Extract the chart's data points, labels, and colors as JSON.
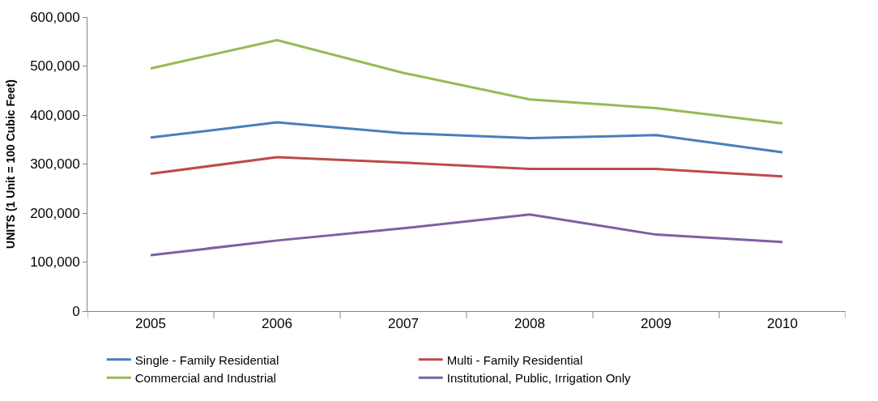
{
  "chart_data": {
    "type": "line",
    "ylabel": "UNITS (1 Unit = 100 Cubic Feet)",
    "categories": [
      "2005",
      "2006",
      "2007",
      "2008",
      "2009",
      "2010"
    ],
    "series": [
      {
        "name": "Single - Family Residential",
        "color": "#4a7ebb",
        "values": [
          354000,
          385000,
          363000,
          353000,
          359000,
          324000
        ]
      },
      {
        "name": "Multi - Family Residential",
        "color": "#be4b48",
        "values": [
          280000,
          314000,
          303000,
          290000,
          290000,
          275000
        ]
      },
      {
        "name": "Commercial and Industrial",
        "color": "#98b954",
        "values": [
          495000,
          553000,
          486000,
          432000,
          414000,
          383000
        ]
      },
      {
        "name": "Institutional, Public, Irrigation Only",
        "color": "#7d60a0",
        "values": [
          114000,
          144000,
          169000,
          197000,
          156000,
          141000
        ]
      }
    ],
    "ylim": [
      0,
      600000
    ],
    "yticks": [
      {
        "value": 0,
        "label": "0"
      },
      {
        "value": 100000,
        "label": "100,000"
      },
      {
        "value": 200000,
        "label": "200,000"
      },
      {
        "value": 300000,
        "label": "300,000"
      },
      {
        "value": 400000,
        "label": "400,000"
      },
      {
        "value": 500000,
        "label": "500,000"
      },
      {
        "value": 600000,
        "label": "600,000"
      }
    ],
    "grid": false,
    "legend": "bottom",
    "marker": "none",
    "line_style": "solid"
  }
}
